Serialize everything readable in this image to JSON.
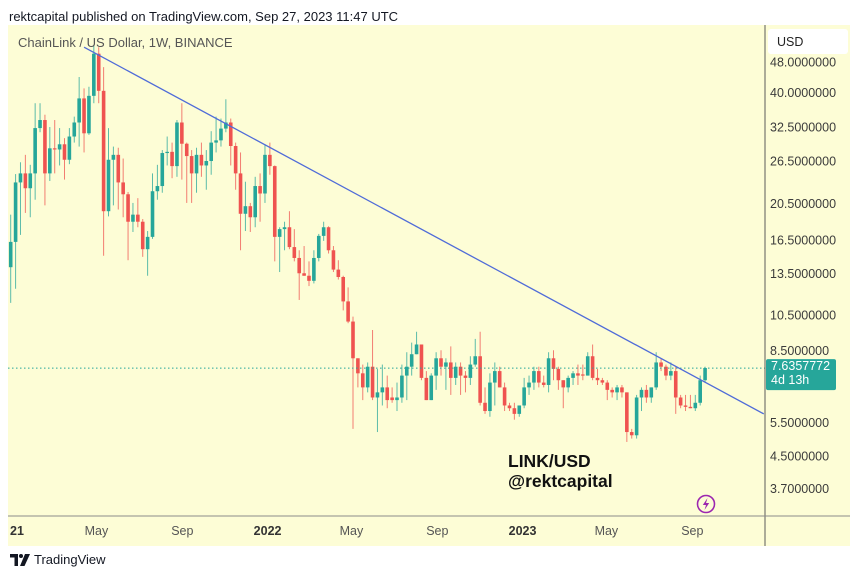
{
  "header": {
    "published": "rektcapital published on TradingView.com, Sep 27, 2023 11:47 UTC"
  },
  "chart_data": {
    "type": "candlestick",
    "title": "ChainLink / US Dollar, 1W, BINANCE",
    "annotation": {
      "line1": "LINK/USD",
      "line2": "@rektcapital"
    },
    "currency": "USD",
    "interval": "1W",
    "start_date": "2021-01-04",
    "y_scale": "log",
    "ylim": [
      3.14,
      60
    ],
    "grid": false,
    "price_ticks": [
      {
        "value": 48,
        "label": "48.0000000"
      },
      {
        "value": 40,
        "label": "40.0000000"
      },
      {
        "value": 32.5,
        "label": "32.5000000"
      },
      {
        "value": 26.5,
        "label": "26.5000000"
      },
      {
        "value": 20.5,
        "label": "20.5000000"
      },
      {
        "value": 16.5,
        "label": "16.5000000"
      },
      {
        "value": 13.5,
        "label": "13.5000000"
      },
      {
        "value": 10.5,
        "label": "10.5000000"
      },
      {
        "value": 8.5,
        "label": "8.5000000"
      },
      {
        "value": 5.5,
        "label": "5.5000000"
      },
      {
        "value": 4.5,
        "label": "4.5000000"
      },
      {
        "value": 3.7,
        "label": "3.7000000"
      }
    ],
    "time_ticks": [
      {
        "date": "2021-01-01",
        "label": "21",
        "year": true
      },
      {
        "date": "2021-05-01",
        "label": "May",
        "year": false
      },
      {
        "date": "2021-09-01",
        "label": "Sep",
        "year": false
      },
      {
        "date": "2022-01-01",
        "label": "2022",
        "year": true
      },
      {
        "date": "2022-05-01",
        "label": "May",
        "year": false
      },
      {
        "date": "2022-09-01",
        "label": "Sep",
        "year": false
      },
      {
        "date": "2023-01-01",
        "label": "2023",
        "year": true
      },
      {
        "date": "2023-05-01",
        "label": "May",
        "year": false
      },
      {
        "date": "2023-09-01",
        "label": "Sep",
        "year": false
      }
    ],
    "last_price": {
      "value": 7.6357772,
      "label": "7.6357772",
      "countdown": "4d 13h"
    },
    "trendline": [
      {
        "date": "2021-04-19",
        "price": 52.5
      },
      {
        "date": "2023-12-18",
        "price": 5.8
      }
    ],
    "colors": {
      "up": "#26a69a",
      "down": "#ef5350",
      "trendline": "#4f6bd8",
      "background": "#fdfdd6",
      "icon": "#9c27b0"
    },
    "icons": {
      "alert": "lightning-icon",
      "logo": "tradingview-logo-icon"
    },
    "ohlc": [
      [
        14.0,
        19.2,
        11.3,
        16.3
      ],
      [
        16.3,
        24.5,
        12.3,
        23.3
      ],
      [
        23.3,
        26.3,
        17.0,
        24.6
      ],
      [
        24.6,
        27.5,
        19.4,
        22.5
      ],
      [
        22.5,
        25.9,
        18.9,
        24.6
      ],
      [
        24.6,
        37.5,
        21.0,
        32.3
      ],
      [
        32.3,
        37.5,
        31.5,
        33.9
      ],
      [
        33.9,
        35.0,
        20.3,
        24.6
      ],
      [
        24.6,
        32.5,
        23.5,
        28.6
      ],
      [
        28.6,
        33.9,
        24.6,
        28.4
      ],
      [
        28.4,
        32.3,
        25.8,
        29.3
      ],
      [
        29.3,
        30.4,
        23.7,
        26.7
      ],
      [
        26.7,
        32.3,
        26.0,
        30.7
      ],
      [
        30.7,
        34.6,
        29.6,
        33.4
      ],
      [
        33.4,
        43.9,
        28.9,
        38.6
      ],
      [
        38.6,
        41.0,
        27.9,
        31.3
      ],
      [
        31.3,
        41.4,
        31.0,
        39.2
      ],
      [
        39.2,
        53.0,
        37.5,
        50.5
      ],
      [
        50.5,
        52.5,
        37.5,
        40.4
      ],
      [
        40.4,
        46.6,
        15.0,
        19.6
      ],
      [
        19.6,
        32.3,
        19.0,
        26.7
      ],
      [
        26.7,
        28.9,
        20.3,
        27.5
      ],
      [
        27.5,
        28.7,
        19.8,
        23.3
      ],
      [
        23.3,
        26.9,
        18.9,
        21.7
      ],
      [
        21.7,
        22.0,
        14.6,
        18.4
      ],
      [
        18.4,
        20.6,
        17.3,
        19.2
      ],
      [
        19.2,
        21.2,
        17.8,
        18.4
      ],
      [
        18.4,
        18.7,
        14.9,
        15.6
      ],
      [
        15.6,
        17.4,
        13.3,
        16.8
      ],
      [
        16.8,
        24.6,
        16.6,
        22.1
      ],
      [
        22.1,
        25.9,
        21.0,
        22.8
      ],
      [
        22.8,
        28.3,
        21.9,
        27.8
      ],
      [
        27.8,
        30.7,
        25.8,
        28.0
      ],
      [
        28.0,
        29.6,
        23.9,
        25.7
      ],
      [
        25.7,
        33.9,
        24.1,
        33.4
      ],
      [
        33.4,
        37.5,
        23.7,
        29.4
      ],
      [
        29.4,
        29.6,
        20.6,
        27.3
      ],
      [
        27.3,
        28.3,
        20.6,
        24.6
      ],
      [
        24.6,
        28.7,
        21.9,
        27.5
      ],
      [
        27.5,
        29.6,
        24.1,
        25.8
      ],
      [
        25.8,
        28.3,
        22.3,
        26.5
      ],
      [
        26.5,
        31.7,
        24.4,
        29.6
      ],
      [
        29.6,
        34.6,
        27.9,
        30.0
      ],
      [
        30.0,
        34.2,
        28.9,
        32.2
      ],
      [
        32.2,
        38.4,
        31.5,
        33.4
      ],
      [
        33.4,
        34.2,
        25.8,
        29.0
      ],
      [
        29.0,
        29.6,
        22.3,
        24.6
      ],
      [
        24.6,
        27.9,
        15.5,
        19.3
      ],
      [
        19.3,
        23.4,
        17.4,
        20.2
      ],
      [
        20.2,
        20.6,
        17.3,
        18.9
      ],
      [
        18.9,
        24.1,
        17.8,
        22.8
      ],
      [
        22.8,
        24.6,
        18.4,
        21.8
      ],
      [
        21.8,
        29.3,
        20.6,
        27.5
      ],
      [
        27.5,
        29.6,
        24.4,
        25.7
      ],
      [
        25.7,
        25.8,
        14.5,
        16.8
      ],
      [
        16.8,
        17.8,
        13.6,
        17.6
      ],
      [
        17.6,
        18.4,
        15.5,
        17.8
      ],
      [
        17.8,
        19.6,
        15.6,
        15.8
      ],
      [
        15.8,
        17.6,
        14.5,
        14.8
      ],
      [
        14.8,
        15.5,
        11.5,
        13.5
      ],
      [
        13.5,
        15.9,
        13.3,
        13.3
      ],
      [
        13.3,
        14.5,
        12.5,
        12.9
      ],
      [
        12.9,
        15.5,
        12.7,
        14.8
      ],
      [
        14.8,
        17.1,
        14.5,
        16.9
      ],
      [
        16.9,
        18.4,
        16.4,
        17.8
      ],
      [
        17.8,
        17.9,
        15.2,
        15.5
      ],
      [
        15.5,
        15.9,
        13.6,
        13.8
      ],
      [
        13.8,
        14.6,
        13.0,
        13.2
      ],
      [
        13.2,
        13.3,
        10.8,
        11.4
      ],
      [
        11.4,
        12.4,
        10.0,
        10.1
      ],
      [
        10.1,
        10.4,
        5.3,
        8.1
      ],
      [
        8.1,
        8.1,
        6.8,
        7.4
      ],
      [
        7.4,
        7.8,
        6.3,
        6.8
      ],
      [
        6.8,
        7.9,
        6.6,
        7.7
      ],
      [
        7.7,
        9.6,
        6.3,
        6.4
      ],
      [
        6.4,
        7.6,
        5.2,
        6.6
      ],
      [
        6.6,
        7.8,
        6.1,
        6.8
      ],
      [
        6.8,
        7.3,
        6.0,
        6.3
      ],
      [
        6.4,
        6.8,
        6.2,
        6.3
      ],
      [
        6.3,
        7.0,
        5.9,
        6.4
      ],
      [
        6.4,
        7.8,
        6.2,
        7.3
      ],
      [
        7.3,
        8.4,
        6.3,
        7.7
      ],
      [
        7.7,
        8.9,
        7.3,
        8.3
      ],
      [
        8.3,
        9.5,
        8.3,
        8.8
      ],
      [
        8.8,
        8.8,
        7.1,
        7.2
      ],
      [
        7.2,
        7.5,
        6.3,
        6.3
      ],
      [
        6.3,
        7.4,
        6.3,
        7.3
      ],
      [
        7.3,
        8.4,
        6.7,
        8.1
      ],
      [
        8.1,
        8.5,
        7.3,
        7.7
      ],
      [
        7.7,
        8.1,
        6.7,
        7.9
      ],
      [
        7.9,
        8.7,
        6.5,
        7.2
      ],
      [
        7.2,
        7.9,
        6.9,
        7.7
      ],
      [
        7.7,
        7.9,
        6.5,
        7.3
      ],
      [
        7.3,
        7.5,
        6.6,
        7.2
      ],
      [
        7.2,
        8.2,
        6.9,
        7.8
      ],
      [
        7.8,
        9.1,
        7.7,
        8.2
      ],
      [
        8.2,
        9.5,
        6.1,
        6.2
      ],
      [
        6.2,
        6.8,
        5.8,
        5.9
      ],
      [
        5.9,
        7.4,
        5.7,
        7.0
      ],
      [
        7.0,
        7.9,
        6.1,
        7.5
      ],
      [
        7.5,
        7.7,
        6.8,
        6.8
      ],
      [
        6.8,
        7.0,
        5.9,
        6.1
      ],
      [
        6.1,
        6.2,
        5.9,
        6.0
      ],
      [
        6.0,
        6.2,
        5.6,
        5.8
      ],
      [
        5.8,
        6.1,
        5.7,
        6.1
      ],
      [
        6.1,
        7.2,
        6.0,
        6.8
      ],
      [
        6.8,
        7.3,
        6.5,
        7.0
      ],
      [
        7.0,
        7.7,
        6.7,
        7.5
      ],
      [
        7.5,
        7.7,
        6.8,
        7.0
      ],
      [
        7.0,
        7.3,
        6.8,
        6.9
      ],
      [
        6.9,
        8.4,
        6.6,
        8.1
      ],
      [
        8.1,
        8.5,
        7.1,
        7.6
      ],
      [
        7.6,
        7.7,
        6.7,
        7.1
      ],
      [
        7.1,
        7.1,
        6.0,
        6.8
      ],
      [
        6.8,
        7.3,
        6.6,
        7.2
      ],
      [
        7.2,
        7.5,
        6.9,
        7.4
      ],
      [
        7.4,
        7.8,
        6.9,
        7.3
      ],
      [
        7.35,
        7.8,
        7.1,
        7.3
      ],
      [
        7.3,
        8.4,
        7.3,
        8.2
      ],
      [
        8.2,
        8.8,
        7.1,
        7.2
      ],
      [
        7.2,
        7.6,
        6.9,
        7.1
      ],
      [
        7.1,
        7.2,
        6.9,
        7.0
      ],
      [
        7.0,
        7.1,
        6.3,
        6.7
      ],
      [
        6.7,
        6.8,
        6.4,
        6.6
      ],
      [
        6.6,
        6.9,
        6.3,
        6.8
      ],
      [
        6.8,
        6.9,
        6.4,
        6.6
      ],
      [
        6.6,
        6.6,
        4.9,
        5.2
      ],
      [
        5.2,
        5.3,
        5.0,
        5.1
      ],
      [
        5.1,
        6.5,
        5.0,
        6.4
      ],
      [
        6.4,
        6.8,
        5.9,
        6.7
      ],
      [
        6.7,
        6.9,
        6.2,
        6.4
      ],
      [
        6.4,
        6.8,
        6.2,
        6.8
      ],
      [
        6.8,
        8.4,
        6.7,
        7.9
      ],
      [
        7.9,
        8.1,
        7.5,
        7.7
      ],
      [
        7.7,
        7.8,
        7.1,
        7.3
      ],
      [
        7.3,
        7.9,
        7.1,
        7.5
      ],
      [
        7.5,
        7.7,
        5.8,
        6.4
      ],
      [
        6.4,
        6.5,
        6.0,
        6.1
      ],
      [
        6.1,
        6.5,
        5.9,
        6.05
      ],
      [
        6.05,
        6.5,
        6.0,
        6.0
      ],
      [
        6.0,
        6.5,
        5.9,
        6.2
      ],
      [
        6.2,
        7.3,
        6.1,
        7.1
      ],
      [
        7.1,
        7.7,
        7.0,
        7.64
      ]
    ]
  },
  "footer": {
    "logo_text": "TradingView"
  }
}
